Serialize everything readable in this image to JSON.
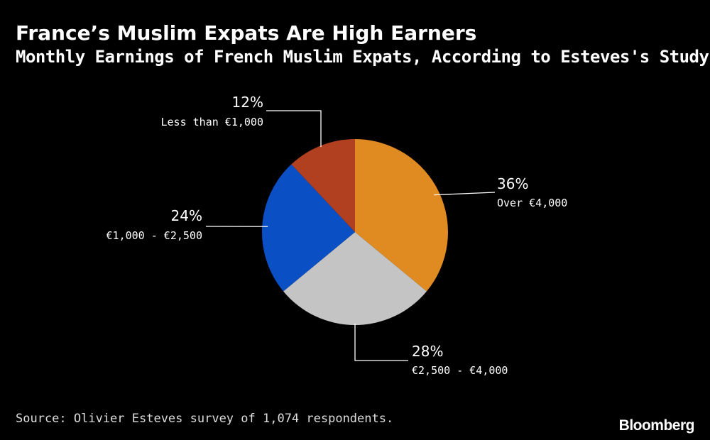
{
  "header": {
    "title": "France’s Muslim Expats Are High Earners",
    "subtitle": "Monthly Earnings of French Muslim Expats, According to Esteves's Study"
  },
  "footer": {
    "source": "Source: Olivier Esteves survey of 1,074 respondents.",
    "logo": "Bloomberg"
  },
  "chart_data": {
    "type": "pie",
    "title": "France’s Muslim Expats Are High Earners",
    "subtitle": "Monthly Earnings of French Muslim Expats, According to Esteves's Study",
    "slices": [
      {
        "label": "Over €4,000",
        "value": 36,
        "value_label": "36%",
        "color": "#e08a22"
      },
      {
        "label": "€2,500 - €4,000",
        "value": 28,
        "value_label": "28%",
        "color": "#c4c4c4"
      },
      {
        "label": "€1,000 - €2,500",
        "value": 24,
        "value_label": "24%",
        "color": "#0b4fc4"
      },
      {
        "label": "Less than €1,000",
        "value": 12,
        "value_label": "12%",
        "color": "#b0401f"
      }
    ],
    "start": "12 o'clock",
    "direction": "clockwise",
    "legend": "none"
  }
}
